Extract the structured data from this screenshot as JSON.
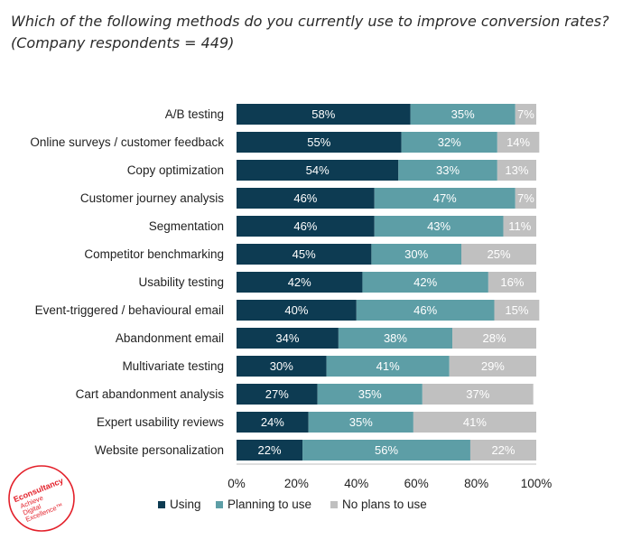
{
  "title": {
    "line1": "Which of the following methods do you currently use to improve conversion rates?",
    "line2": "(Company respondents = 449)"
  },
  "logo": {
    "brand": "Econsultancy",
    "tagline_1": "Achieve",
    "tagline_2": "Digital",
    "tagline_3": "Excellence™",
    "color": "#e3202a"
  },
  "chart_data": {
    "type": "bar",
    "orientation": "horizontal",
    "stacked": true,
    "categories": [
      "A/B testing",
      "Online surveys / customer feedback",
      "Copy optimization",
      "Customer journey analysis",
      "Segmentation",
      "Competitor benchmarking",
      "Usability testing",
      "Event-triggered / behavioural email",
      "Abandonment email",
      "Multivariate testing",
      "Cart abandonment analysis",
      "Expert usability reviews",
      "Website personalization"
    ],
    "series": [
      {
        "name": "Using",
        "color": "#0d3b52",
        "values": [
          58,
          55,
          54,
          46,
          46,
          45,
          42,
          40,
          34,
          30,
          27,
          24,
          22
        ]
      },
      {
        "name": "Planning to use",
        "color": "#5d9ea6",
        "values": [
          35,
          32,
          33,
          47,
          43,
          30,
          42,
          46,
          38,
          41,
          35,
          35,
          56
        ]
      },
      {
        "name": "No plans to use",
        "color": "#c0c0c0",
        "values": [
          7,
          14,
          13,
          7,
          11,
          25,
          16,
          15,
          28,
          29,
          37,
          41,
          22
        ]
      }
    ],
    "value_suffix": "%",
    "xlim": [
      0,
      100
    ],
    "xticks": [
      "0%",
      "20%",
      "40%",
      "60%",
      "80%",
      "100%"
    ],
    "grid": false,
    "legend_position": "bottom"
  }
}
